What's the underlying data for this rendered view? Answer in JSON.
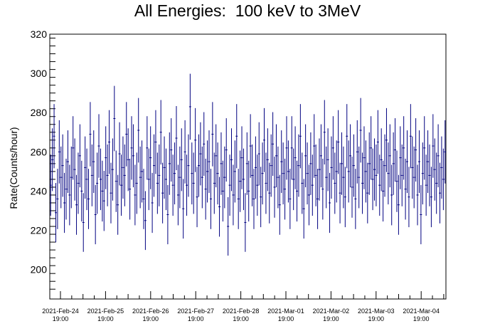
{
  "chart_data": {
    "type": "scatter",
    "title": "All Energies:  100 keV to 3MeV",
    "xlabel": "",
    "ylabel": "Rate(Counts/hour)",
    "ylim": [
      185,
      320
    ],
    "y_ticks": [
      200,
      220,
      240,
      260,
      280,
      300,
      320
    ],
    "x_range_days": [
      0,
      8.6
    ],
    "x_ticks": [
      {
        "date": "2021-Feb-24",
        "time": "19:00"
      },
      {
        "date": "2021-Feb-25",
        "time": "19:00"
      },
      {
        "date": "2021-Feb-26",
        "time": "19:00"
      },
      {
        "date": "2021-Feb-27",
        "time": "19:00"
      },
      {
        "date": "2021-Feb-28",
        "time": "19:00"
      },
      {
        "date": "2021-Mar-01",
        "time": "19:00"
      },
      {
        "date": "2021-Mar-02",
        "time": "19:00"
      },
      {
        "date": "2021-Mar-03",
        "time": "19:00"
      },
      {
        "date": "2021-Mar-04",
        "time": "19:00"
      }
    ],
    "grid": false,
    "marker_color": "#000080",
    "series": [
      {
        "values": [
          243,
          256,
          268,
          229,
          236,
          260,
          247,
          253,
          234,
          241,
          255,
          238,
          247,
          262,
          251,
          233,
          244,
          258,
          240,
          224,
          252,
          246,
          236,
          269,
          248,
          255,
          228,
          244,
          263,
          246,
          240,
          235,
          257,
          248,
          265,
          239,
          251,
          277,
          245,
          233,
          259,
          243,
          252,
          248,
          269,
          256,
          241,
          262,
          258,
          238,
          244,
          271,
          247,
          250,
          236,
          225,
          262,
          246,
          257,
          234,
          253,
          265,
          244,
          248,
          270,
          239,
          252,
          246,
          228,
          254,
          261,
          243,
          249,
          267,
          238,
          247,
          256,
          231,
          260,
          243,
          253,
          283,
          249,
          244,
          266,
          237,
          253,
          259,
          247,
          264,
          241,
          250,
          255,
          236,
          269,
          244,
          258,
          249,
          232,
          254,
          240,
          247,
          261,
          222,
          243,
          256,
          238,
          250,
          268,
          236,
          245,
          257,
          246,
          224,
          254,
          240,
          263,
          248,
          236,
          252,
          243,
          259,
          237,
          249,
          266,
          244,
          256,
          239,
          253,
          264,
          242,
          258,
          247,
          233,
          255,
          249,
          241,
          262,
          250,
          236,
          262,
          246,
          257,
          240,
          253,
          268,
          244,
          231,
          258,
          249,
          238,
          254,
          243,
          263,
          248,
          236,
          251,
          258,
          241,
          270,
          247,
          256,
          234,
          252,
          262,
          244,
          250,
          265,
          239,
          254,
          247,
          237,
          268,
          250,
          258,
          242,
          253,
          236,
          260,
          247,
          271,
          244,
          257,
          250,
          239,
          254,
          262,
          246,
          251,
          248,
          265,
          243,
          256,
          240,
          253,
          266,
          249,
          258,
          238,
          254,
          261,
          245,
          233,
          257,
          248,
          262,
          241,
          255,
          237,
          268,
          252,
          247,
          261,
          238,
          255,
          228,
          249,
          262,
          243,
          255,
          248,
          237,
          263,
          251,
          244,
          258,
          239,
          252,
          246,
          260
        ]
      }
    ]
  }
}
